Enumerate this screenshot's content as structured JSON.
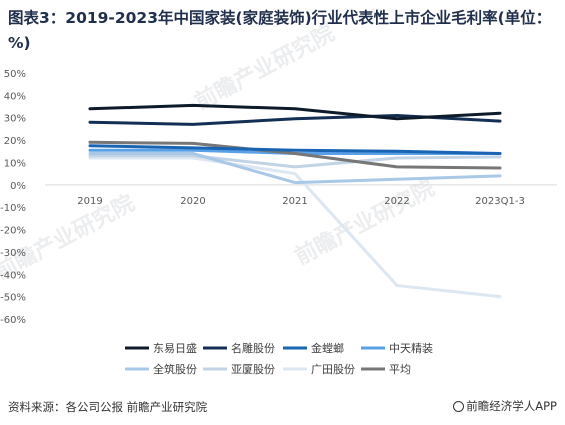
{
  "title": "图表3：2019-2023年中国家装(家庭装饰)行业代表性上市企业毛利率(单位：%)",
  "source": "资料来源：各公司公报 前瞻产业研究院",
  "brand": "前瞻经济学人APP",
  "watermarks": [
    "前瞻产业研究院",
    "前瞻产业研究院",
    "前瞻产业研究院"
  ],
  "chart_data": {
    "type": "line",
    "categories": [
      "2019",
      "2020",
      "2021",
      "2022",
      "2023Q1-3"
    ],
    "ylim": [
      -60,
      50
    ],
    "yticks": [
      "50%",
      "40%",
      "30%",
      "20%",
      "10%",
      "0%",
      "-10%",
      "-20%",
      "-30%",
      "-40%",
      "-50%",
      "-60%"
    ],
    "ytick_values": [
      50,
      40,
      30,
      20,
      10,
      0,
      -10,
      -20,
      -30,
      -40,
      -50,
      -60
    ],
    "legend_position": "bottom",
    "series": [
      {
        "name": "东易日盛",
        "color": "#0d1b2a",
        "values": [
          34,
          35.5,
          34,
          29.5,
          32
        ]
      },
      {
        "name": "名雕股份",
        "color": "#142f55",
        "values": [
          28,
          27,
          29.5,
          31,
          28.5
        ]
      },
      {
        "name": "金螳螂",
        "color": "#1a64b4",
        "values": [
          17.5,
          16.5,
          15.5,
          15,
          14
        ]
      },
      {
        "name": "中天精装",
        "color": "#5aa0e6",
        "values": [
          15.5,
          15.5,
          14,
          14,
          14
        ]
      },
      {
        "name": "全筑股份",
        "color": "#a9c8e8",
        "values": [
          14,
          14,
          1,
          2.5,
          4
        ]
      },
      {
        "name": "亚厦股份",
        "color": "#c3d3e6",
        "values": [
          13,
          13,
          8,
          12,
          12.5
        ]
      },
      {
        "name": "广田股份",
        "color": "#dde7f2",
        "values": [
          12,
          12,
          5,
          -45,
          -50
        ]
      },
      {
        "name": "平均",
        "color": "#777777",
        "values": [
          19,
          18.5,
          14,
          8,
          7.5
        ]
      }
    ]
  }
}
